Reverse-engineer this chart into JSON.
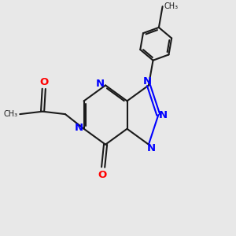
{
  "bg_color": "#e8e8e8",
  "bond_color": "#1a1a1a",
  "n_color": "#0000ff",
  "o_color": "#ff0000",
  "line_width": 1.5,
  "font_size_atom": 9.5,
  "fig_size": [
    3.0,
    3.0
  ],
  "dpi": 100,
  "xlim": [
    0,
    10
  ],
  "ylim": [
    0,
    10
  ]
}
